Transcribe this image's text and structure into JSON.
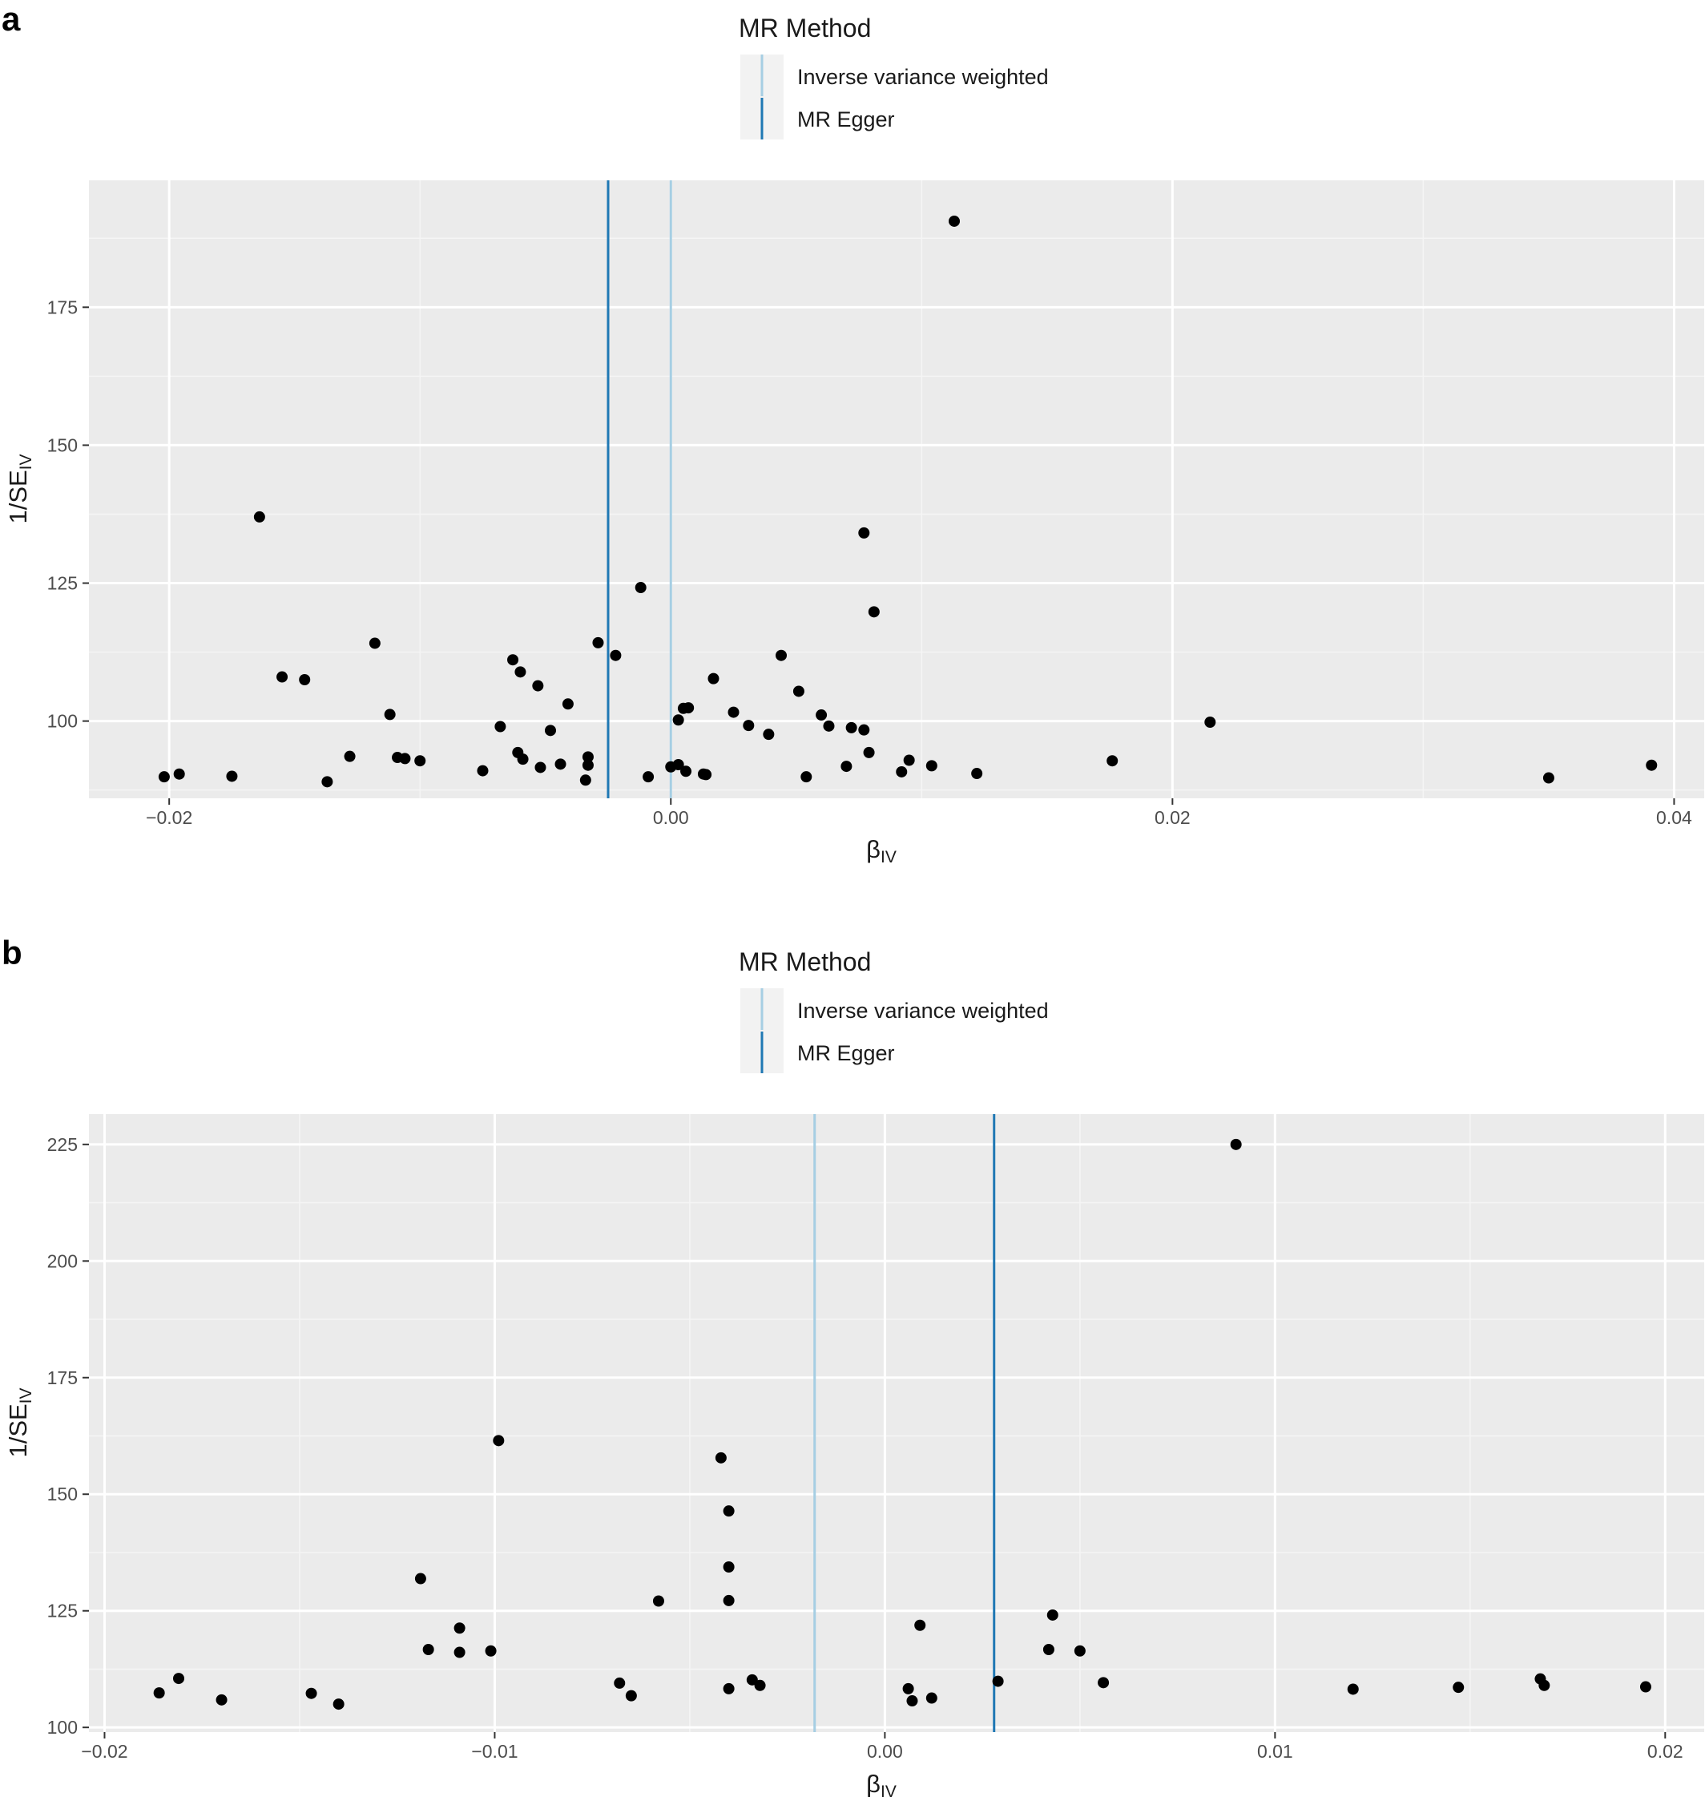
{
  "chart_data": [
    {
      "panel_label": "a",
      "type": "scatter",
      "legend": {
        "title": "MR Method",
        "position": "top",
        "items": [
          {
            "label": "Inverse variance weighted",
            "color": "#a6cee3"
          },
          {
            "label": "MR Egger",
            "color": "#1f78b4"
          }
        ]
      },
      "xlabel": {
        "main": "β",
        "sub": "IV"
      },
      "ylabel": {
        "main": "1/SE",
        "sub": "IV"
      },
      "xlim": [
        -0.0232,
        0.0412
      ],
      "ylim": [
        86,
        198
      ],
      "x_ticks": [
        -0.02,
        0.0,
        0.02,
        0.04
      ],
      "x_tick_labels": [
        "−0.02",
        "0.00",
        "0.02",
        "0.04"
      ],
      "y_ticks": [
        100,
        125,
        150,
        175
      ],
      "y_tick_labels": [
        "100",
        "125",
        "150",
        "175"
      ],
      "grid": true,
      "vlines": [
        {
          "method": "MR Egger",
          "x": -0.0025,
          "color": "#1f78b4"
        },
        {
          "method": "Inverse variance weighted",
          "x": 0.0,
          "color": "#a6cee3"
        }
      ],
      "points": [
        {
          "x": 0.0113,
          "y": 190.6
        },
        {
          "x": -0.0164,
          "y": 137.0
        },
        {
          "x": 0.0077,
          "y": 134.1
        },
        {
          "x": -0.0012,
          "y": 124.2
        },
        {
          "x": 0.0081,
          "y": 119.8
        },
        {
          "x": -0.0118,
          "y": 114.1
        },
        {
          "x": -0.0029,
          "y": 114.2
        },
        {
          "x": -0.0022,
          "y": 111.9
        },
        {
          "x": 0.0044,
          "y": 111.9
        },
        {
          "x": -0.0063,
          "y": 111.1
        },
        {
          "x": -0.006,
          "y": 108.9
        },
        {
          "x": -0.0155,
          "y": 108.0
        },
        {
          "x": -0.0146,
          "y": 107.5
        },
        {
          "x": 0.0017,
          "y": 107.7
        },
        {
          "x": -0.0053,
          "y": 106.4
        },
        {
          "x": 0.0051,
          "y": 105.4
        },
        {
          "x": -0.0041,
          "y": 103.1
        },
        {
          "x": 0.0005,
          "y": 102.3
        },
        {
          "x": 0.0007,
          "y": 102.4
        },
        {
          "x": 0.0025,
          "y": 101.6
        },
        {
          "x": -0.0112,
          "y": 101.2
        },
        {
          "x": 0.006,
          "y": 101.1
        },
        {
          "x": 0.0003,
          "y": 100.2
        },
        {
          "x": 0.0215,
          "y": 99.8
        },
        {
          "x": -0.0068,
          "y": 99.0
        },
        {
          "x": 0.0031,
          "y": 99.2
        },
        {
          "x": 0.0063,
          "y": 99.1
        },
        {
          "x": 0.0072,
          "y": 98.8
        },
        {
          "x": -0.0048,
          "y": 98.3
        },
        {
          "x": 0.0077,
          "y": 98.4
        },
        {
          "x": 0.0039,
          "y": 97.6
        },
        {
          "x": -0.0061,
          "y": 94.3
        },
        {
          "x": 0.0079,
          "y": 94.3
        },
        {
          "x": -0.0128,
          "y": 93.6
        },
        {
          "x": -0.0109,
          "y": 93.4
        },
        {
          "x": -0.0106,
          "y": 93.2
        },
        {
          "x": -0.0059,
          "y": 93.1
        },
        {
          "x": -0.0033,
          "y": 93.5
        },
        {
          "x": -0.01,
          "y": 92.8
        },
        {
          "x": 0.0095,
          "y": 92.9
        },
        {
          "x": 0.0176,
          "y": 92.8
        },
        {
          "x": -0.0044,
          "y": 92.2
        },
        {
          "x": -0.0033,
          "y": 92.0
        },
        {
          "x": 0.007,
          "y": 91.8
        },
        {
          "x": 0.0104,
          "y": 91.9
        },
        {
          "x": 0.0391,
          "y": 92.0
        },
        {
          "x": -0.0052,
          "y": 91.6
        },
        {
          "x": 0.0,
          "y": 91.7
        },
        {
          "x": 0.0003,
          "y": 92.1
        },
        {
          "x": -0.0075,
          "y": 91.0
        },
        {
          "x": 0.0006,
          "y": 90.9
        },
        {
          "x": 0.0092,
          "y": 90.8
        },
        {
          "x": 0.0013,
          "y": 90.4
        },
        {
          "x": 0.0014,
          "y": 90.3
        },
        {
          "x": 0.0122,
          "y": 90.5
        },
        {
          "x": -0.0196,
          "y": 90.4
        },
        {
          "x": -0.0202,
          "y": 89.9
        },
        {
          "x": -0.0175,
          "y": 90.0
        },
        {
          "x": -0.0009,
          "y": 89.9
        },
        {
          "x": 0.0054,
          "y": 89.9
        },
        {
          "x": 0.035,
          "y": 89.7
        },
        {
          "x": -0.0034,
          "y": 89.3
        },
        {
          "x": -0.0137,
          "y": 89.0
        }
      ]
    },
    {
      "panel_label": "b",
      "type": "scatter",
      "legend": {
        "title": "MR Method",
        "position": "top",
        "items": [
          {
            "label": "Inverse variance weighted",
            "color": "#a6cee3"
          },
          {
            "label": "MR Egger",
            "color": "#1f78b4"
          }
        ]
      },
      "xlabel": {
        "main": "β",
        "sub": "IV"
      },
      "ylabel": {
        "main": "1/SE",
        "sub": "IV"
      },
      "xlim": [
        -0.0204,
        0.021
      ],
      "ylim": [
        99,
        231.5
      ],
      "x_ticks": [
        -0.02,
        -0.01,
        0.0,
        0.01,
        0.02
      ],
      "x_tick_labels": [
        "−0.02",
        "−0.01",
        "0.00",
        "0.01",
        "0.02"
      ],
      "y_ticks": [
        100,
        125,
        150,
        175,
        200,
        225
      ],
      "y_tick_labels": [
        "100",
        "125",
        "150",
        "175",
        "200",
        "225"
      ],
      "grid": true,
      "vlines": [
        {
          "method": "Inverse variance weighted",
          "x": -0.0018,
          "color": "#a6cee3"
        },
        {
          "method": "MR Egger",
          "x": 0.0028,
          "color": "#1f78b4"
        }
      ],
      "points": [
        {
          "x": 0.009,
          "y": 225.0
        },
        {
          "x": -0.0099,
          "y": 161.5
        },
        {
          "x": -0.0042,
          "y": 157.8
        },
        {
          "x": -0.004,
          "y": 146.4
        },
        {
          "x": -0.004,
          "y": 134.4
        },
        {
          "x": -0.0119,
          "y": 131.9
        },
        {
          "x": -0.0058,
          "y": 127.1
        },
        {
          "x": -0.004,
          "y": 127.2
        },
        {
          "x": 0.0043,
          "y": 124.1
        },
        {
          "x": 0.0009,
          "y": 121.9
        },
        {
          "x": -0.0109,
          "y": 121.3
        },
        {
          "x": -0.0117,
          "y": 116.7
        },
        {
          "x": -0.0109,
          "y": 116.1
        },
        {
          "x": -0.0101,
          "y": 116.4
        },
        {
          "x": 0.0042,
          "y": 116.7
        },
        {
          "x": 0.005,
          "y": 116.4
        },
        {
          "x": -0.0181,
          "y": 110.5
        },
        {
          "x": -0.0068,
          "y": 109.5
        },
        {
          "x": -0.0034,
          "y": 110.2
        },
        {
          "x": -0.0032,
          "y": 109.0
        },
        {
          "x": 0.0029,
          "y": 109.9
        },
        {
          "x": 0.0056,
          "y": 109.6
        },
        {
          "x": 0.0168,
          "y": 110.4
        },
        {
          "x": 0.0169,
          "y": 109.0
        },
        {
          "x": -0.004,
          "y": 108.3
        },
        {
          "x": 0.0006,
          "y": 108.3
        },
        {
          "x": 0.012,
          "y": 108.2
        },
        {
          "x": 0.0147,
          "y": 108.6
        },
        {
          "x": 0.0195,
          "y": 108.7
        },
        {
          "x": -0.0186,
          "y": 107.4
        },
        {
          "x": -0.0147,
          "y": 107.3
        },
        {
          "x": -0.0065,
          "y": 106.8
        },
        {
          "x": 0.0012,
          "y": 106.3
        },
        {
          "x": -0.017,
          "y": 105.9
        },
        {
          "x": 0.0007,
          "y": 105.7
        },
        {
          "x": -0.014,
          "y": 105.0
        }
      ]
    }
  ]
}
